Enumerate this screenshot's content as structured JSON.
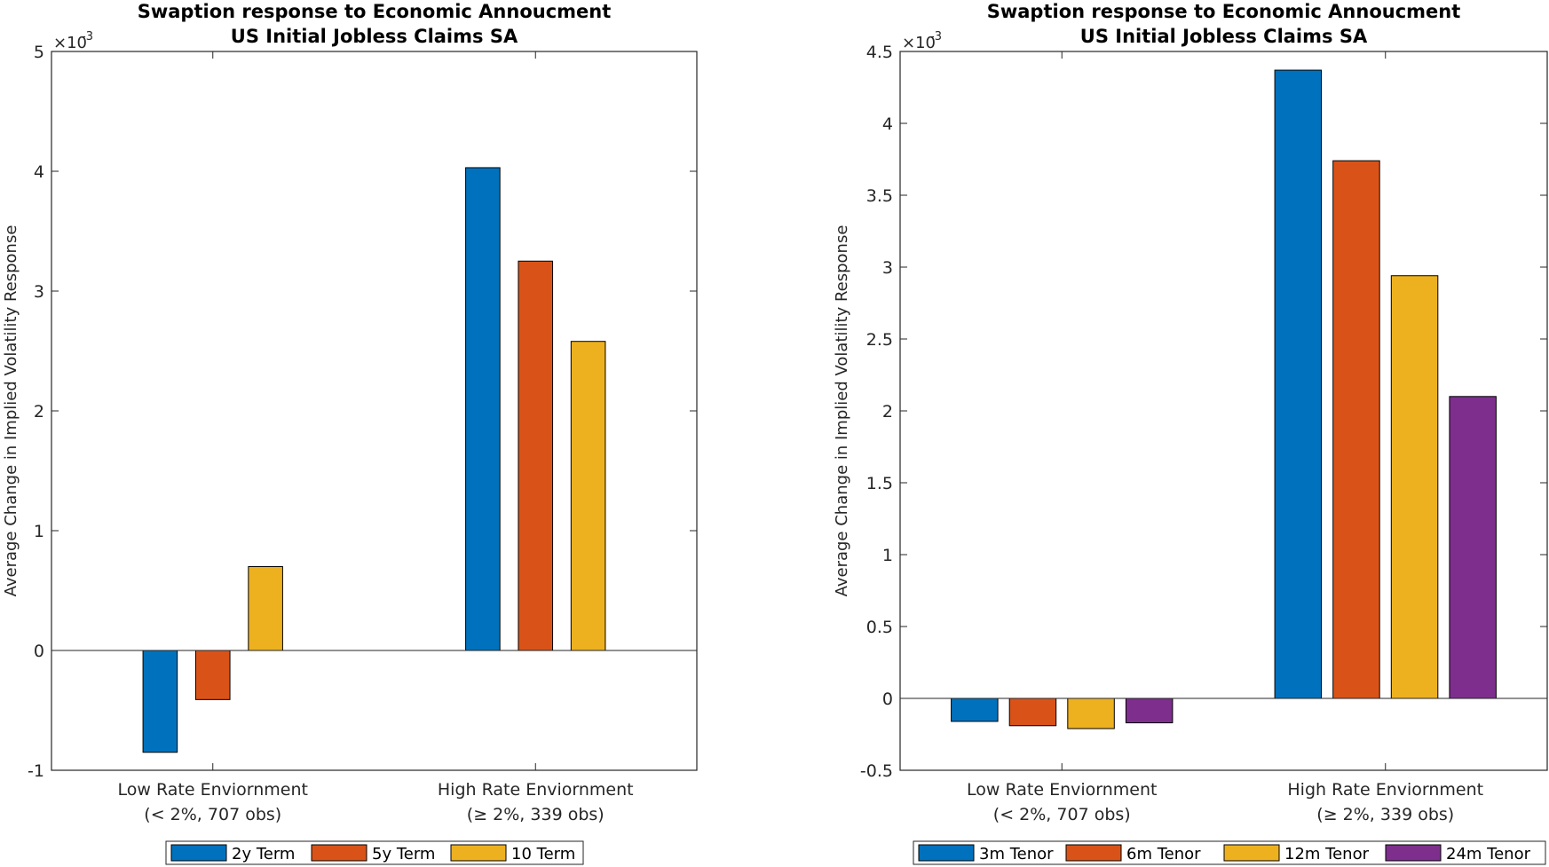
{
  "chart_data": [
    {
      "type": "bar",
      "title": "Swaption response to Economic Annoucment",
      "subtitle": "US Initial Jobless Claims SA",
      "ylabel": "Average Change in Implied Volatility Response",
      "y_multiplier": "×10",
      "y_multiplier_exponent": "-3",
      "ylim": [
        -1,
        5
      ],
      "yticks": [
        -1,
        0,
        1,
        2,
        3,
        4,
        5
      ],
      "ytick_labels": [
        "-1",
        "0",
        "1",
        "2",
        "3",
        "4",
        "5"
      ],
      "categories": [
        {
          "line1": "Low Rate Enviornment",
          "line2": "(< 2%, 707 obs)"
        },
        {
          "line1": "High Rate Enviornment",
          "line2": "(≥ 2%, 339 obs)"
        }
      ],
      "series": [
        {
          "name": "2y Term",
          "color": "#0072BD",
          "values": [
            -0.85,
            4.03
          ]
        },
        {
          "name": "5y Term",
          "color": "#D95319",
          "values": [
            -0.41,
            3.25
          ]
        },
        {
          "name": "10 Term",
          "color": "#EDB120",
          "values": [
            0.7,
            2.58
          ]
        }
      ],
      "legend": "bottom"
    },
    {
      "type": "bar",
      "title": "Swaption response to Economic Annoucment",
      "subtitle": "US Initial Jobless Claims SA",
      "ylabel": "Average Change in Implied Volatility Response",
      "y_multiplier": "×10",
      "y_multiplier_exponent": "-3",
      "ylim": [
        -0.5,
        4.5
      ],
      "yticks": [
        -0.5,
        0,
        0.5,
        1,
        1.5,
        2,
        2.5,
        3,
        3.5,
        4,
        4.5
      ],
      "ytick_labels": [
        "-0.5",
        "0",
        "0.5",
        "1",
        "1.5",
        "2",
        "2.5",
        "3",
        "3.5",
        "4",
        "4.5"
      ],
      "categories": [
        {
          "line1": "Low Rate Enviornment",
          "line2": "(< 2%, 707 obs)"
        },
        {
          "line1": "High Rate Enviornment",
          "line2": "(≥ 2%, 339 obs)"
        }
      ],
      "series": [
        {
          "name": "3m Tenor",
          "color": "#0072BD",
          "values": [
            -0.16,
            4.37
          ]
        },
        {
          "name": "6m Tenor",
          "color": "#D95319",
          "values": [
            -0.19,
            3.74
          ]
        },
        {
          "name": "12m Tenor",
          "color": "#EDB120",
          "values": [
            -0.21,
            2.94
          ]
        },
        {
          "name": "24m Tenor",
          "color": "#7E2F8E",
          "values": [
            -0.17,
            2.1
          ]
        }
      ],
      "legend": "bottom"
    }
  ]
}
